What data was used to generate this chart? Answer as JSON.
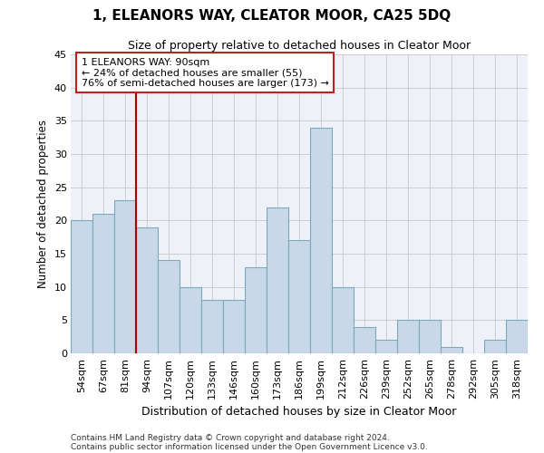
{
  "title1": "1, ELEANORS WAY, CLEATOR MOOR, CA25 5DQ",
  "title2": "Size of property relative to detached houses in Cleator Moor",
  "xlabel": "Distribution of detached houses by size in Cleator Moor",
  "ylabel": "Number of detached properties",
  "categories": [
    "54sqm",
    "67sqm",
    "81sqm",
    "94sqm",
    "107sqm",
    "120sqm",
    "133sqm",
    "146sqm",
    "160sqm",
    "173sqm",
    "186sqm",
    "199sqm",
    "212sqm",
    "226sqm",
    "239sqm",
    "252sqm",
    "265sqm",
    "278sqm",
    "292sqm",
    "305sqm",
    "318sqm"
  ],
  "values": [
    20,
    21,
    23,
    19,
    14,
    10,
    8,
    8,
    13,
    22,
    17,
    34,
    10,
    4,
    2,
    5,
    5,
    1,
    0,
    2,
    5
  ],
  "bar_color": "#c8d8e8",
  "bar_edge_color": "#7aaabb",
  "subject_line_color": "#aa0000",
  "annotation_text": "1 ELEANORS WAY: 90sqm\n← 24% of detached houses are smaller (55)\n76% of semi-detached houses are larger (173) →",
  "annotation_box_color": "#ffffff",
  "annotation_box_edge_color": "#bb2222",
  "grid_color": "#cccccc",
  "background_color": "#eef2f8",
  "ylim": [
    0,
    45
  ],
  "yticks": [
    0,
    5,
    10,
    15,
    20,
    25,
    30,
    35,
    40,
    45
  ],
  "footer1": "Contains HM Land Registry data © Crown copyright and database right 2024.",
  "footer2": "Contains public sector information licensed under the Open Government Licence v3.0."
}
